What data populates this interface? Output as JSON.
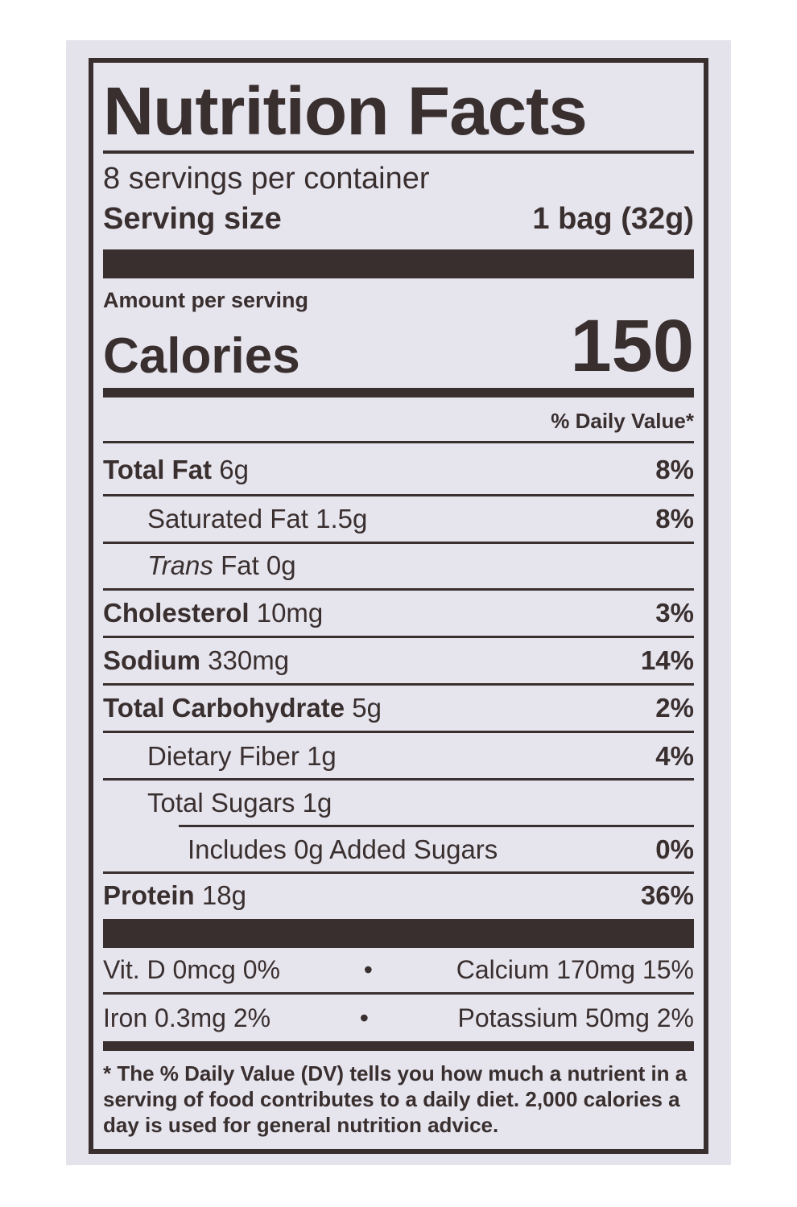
{
  "title": "Nutrition Facts",
  "servings_per_container": "8 servings per container",
  "serving_size": {
    "label": "Serving size",
    "value": "1 bag (32g)"
  },
  "amount_per_serving": "Amount per serving",
  "calories": {
    "label": "Calories",
    "value": "150"
  },
  "daily_value_header": "% Daily Value*",
  "nutrients": [
    {
      "name": "Total Fat",
      "amount": "6g",
      "dv": "8%"
    },
    {
      "name": "Saturated Fat",
      "amount": "1.5g",
      "dv": "8%"
    },
    {
      "name": "Trans",
      "suffix": "Fat 0g",
      "dv": ""
    },
    {
      "name": "Cholesterol",
      "amount": "10mg",
      "dv": "3%"
    },
    {
      "name": "Sodium",
      "amount": "330mg",
      "dv": "14%"
    },
    {
      "name": "Total Carbohydrate",
      "amount": "5g",
      "dv": "2%"
    },
    {
      "name": "Dietary Fiber",
      "amount": "1g",
      "dv": "4%"
    },
    {
      "name": "Total Sugars",
      "amount": "1g",
      "dv": ""
    },
    {
      "name": "Includes 0g Added Sugars",
      "amount": "",
      "dv": "0%"
    },
    {
      "name": "Protein",
      "amount": "18g",
      "dv": "36%"
    }
  ],
  "vitamins": [
    {
      "left": "Vit. D 0mcg 0%",
      "right": "Calcium 170mg 15%"
    },
    {
      "left": "Iron 0.3mg 2%",
      "right": "Potassium 50mg 2%"
    }
  ],
  "bullet": "•",
  "footnote": "* The % Daily Value (DV) tells you how much a nutrient in a serving of food contributes to a daily diet. 2,000 calories a day is used for general nutrition advice.",
  "colors": {
    "ink": "#3a2f2f",
    "panel": "#e4e3ec"
  }
}
